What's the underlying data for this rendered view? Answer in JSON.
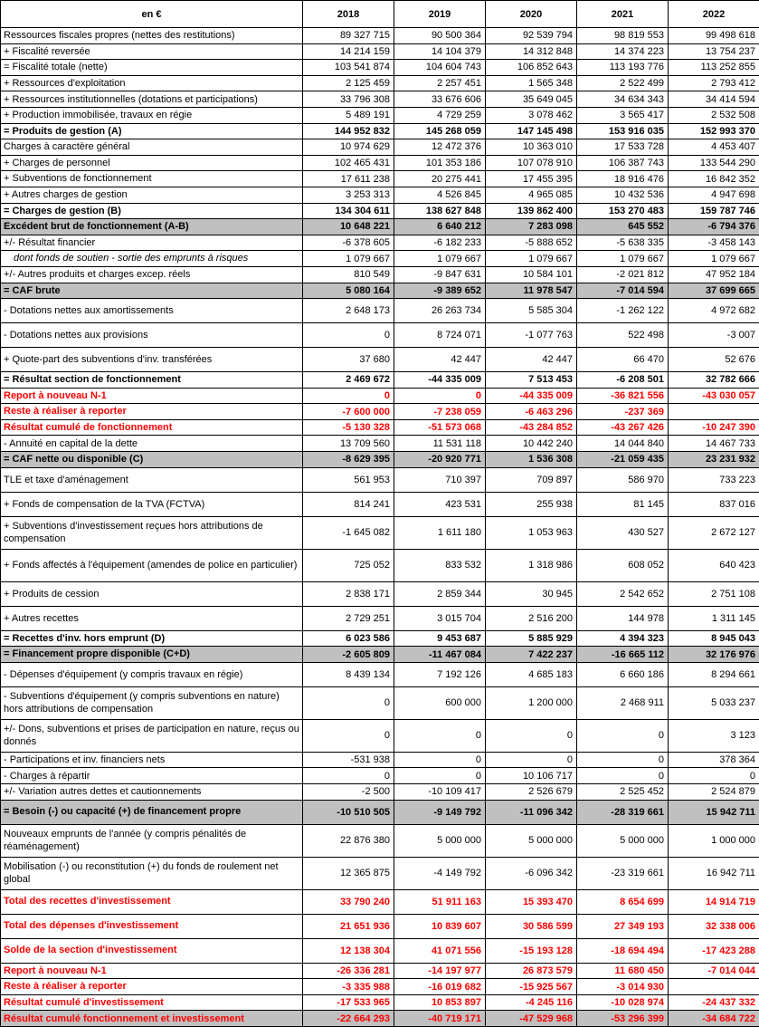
{
  "table": {
    "unit_label": "en €",
    "years": [
      "2018",
      "2019",
      "2020",
      "2021",
      "2022"
    ],
    "colors": {
      "band_bg": "#C0C0C0",
      "highlight_red": "#FF0000",
      "border": "#000000"
    },
    "rows": [
      {
        "label": "Ressources fiscales propres (nettes des restitutions)",
        "values": [
          "89 327 715",
          "90 500 364",
          "92 539 794",
          "98 819 553",
          "99 498 618"
        ],
        "kind": "normal",
        "h": "s"
      },
      {
        "label": "+ Fiscalité reversée",
        "values": [
          "14 214 159",
          "14 104 379",
          "14 312 848",
          "14 374 223",
          "13 754 237"
        ],
        "kind": "normal",
        "h": "s"
      },
      {
        "label": "= Fiscalité totale (nette)",
        "values": [
          "103 541 874",
          "104 604 743",
          "106 852 643",
          "113 193 776",
          "113 252 855"
        ],
        "kind": "normal",
        "h": "s"
      },
      {
        "label": "+ Ressources d'exploitation",
        "values": [
          "2 125 459",
          "2 257 451",
          "1 565 348",
          "2 522 499",
          "2 793 412"
        ],
        "kind": "normal",
        "h": "s"
      },
      {
        "label": "+ Ressources institutionnelles (dotations et participations)",
        "values": [
          "33 796 308",
          "33 676 606",
          "35 649 045",
          "34 634 343",
          "34 414 594"
        ],
        "kind": "normal",
        "h": "s"
      },
      {
        "label": "+ Production immobilisée, travaux en régie",
        "values": [
          "5 489 191",
          "4 729 259",
          "3 078 462",
          "3 565 417",
          "2 532 508"
        ],
        "kind": "normal",
        "h": "s"
      },
      {
        "label": "= Produits de gestion (A)",
        "values": [
          "144 952 832",
          "145 268 059",
          "147 145 498",
          "153 916 035",
          "152 993 370"
        ],
        "kind": "total",
        "h": "s"
      },
      {
        "label": "Charges à caractère général",
        "values": [
          "10 974 629",
          "12 472 376",
          "10 363 010",
          "17 533 728",
          "4 453 407"
        ],
        "kind": "normal",
        "h": "s"
      },
      {
        "label": "+ Charges de personnel",
        "values": [
          "102 465 431",
          "101 353 186",
          "107 078 910",
          "106 387 743",
          "133 544 290"
        ],
        "kind": "normal",
        "h": "s"
      },
      {
        "label": "+ Subventions de fonctionnement",
        "values": [
          "17 611 238",
          "20 275 441",
          "17 455 395",
          "18 916 476",
          "16 842 352"
        ],
        "kind": "normal",
        "h": "s"
      },
      {
        "label": "+ Autres charges de gestion",
        "values": [
          "3 253 313",
          "4 526 845",
          "4 965 085",
          "10 432 536",
          "4 947 698"
        ],
        "kind": "normal",
        "h": "s"
      },
      {
        "label": "= Charges de gestion (B)",
        "values": [
          "134 304 611",
          "138 627 848",
          "139 862 400",
          "153 270 483",
          "159 787 746"
        ],
        "kind": "total",
        "h": "s"
      },
      {
        "label": "Excédent brut de fonctionnement (A-B)",
        "values": [
          "10 648 221",
          "6 640 212",
          "7 283 098",
          "645 552",
          "-6 794 376"
        ],
        "kind": "band",
        "h": "s"
      },
      {
        "label": "+/- Résultat financier",
        "values": [
          "-6 378 605",
          "-6 182 233",
          "-5 888 652",
          "-5 638 335",
          "-3 458 143"
        ],
        "kind": "normal",
        "h": "s"
      },
      {
        "label": "dont fonds de soutien - sortie des emprunts à risques",
        "values": [
          "1 079 667",
          "1 079 667",
          "1 079 667",
          "1 079 667",
          "1 079 667"
        ],
        "kind": "detail-italic",
        "h": "s"
      },
      {
        "label": "+/- Autres produits et charges excep. réels",
        "values": [
          "810 549",
          "-9 847 631",
          "10 584 101",
          "-2 021 812",
          "47 952 184"
        ],
        "kind": "normal",
        "h": "s"
      },
      {
        "label": "= CAF brute",
        "values": [
          "5 080 164",
          "-9 389 652",
          "11 978 547",
          "-7 014 594",
          "37 699 665"
        ],
        "kind": "band",
        "h": "s"
      },
      {
        "label": "- Dotations nettes aux amortissements",
        "values": [
          "2 648 173",
          "26 263 734",
          "5 585 304",
          "-1 262 122",
          "4 972 682"
        ],
        "kind": "normal",
        "h": "m"
      },
      {
        "label": "- Dotations nettes aux provisions",
        "values": [
          "0",
          "8 724 071",
          "-1 077 763",
          "522 498",
          "-3 007"
        ],
        "kind": "normal",
        "h": "m"
      },
      {
        "label": "+ Quote-part des subventions d'inv. transférées",
        "values": [
          "37 680",
          "42 447",
          "42 447",
          "66 470",
          "52 676"
        ],
        "kind": "normal",
        "h": "m"
      },
      {
        "label": "= Résultat section de fonctionnement",
        "values": [
          "2 469 672",
          "-44 335 009",
          "7 513 453",
          "-6 208 501",
          "32 782 666"
        ],
        "kind": "total",
        "h": "s"
      },
      {
        "label": "Report à nouveau N-1",
        "values": [
          "0",
          "0",
          "-44 335 009",
          "-36 821 556",
          "-43 030 057"
        ],
        "kind": "red",
        "h": "s"
      },
      {
        "label": "Reste à réaliser à reporter",
        "values": [
          "-7 600 000",
          "-7 238 059",
          "-6 463 296",
          "-237 369",
          ""
        ],
        "kind": "red",
        "h": "s"
      },
      {
        "label": "Résultat cumulé de fonctionnement",
        "values": [
          "-5 130 328",
          "-51 573 068",
          "-43 284 852",
          "-43 267 426",
          "-10 247 390"
        ],
        "kind": "red",
        "h": "s"
      },
      {
        "label": "- Annuité en capital de la dette",
        "values": [
          "13 709 560",
          "11 531 118",
          "10 442 240",
          "14 044 840",
          "14 467 733"
        ],
        "kind": "normal",
        "h": "s"
      },
      {
        "label": "= CAF nette ou disponible (C)",
        "values": [
          "-8 629 395",
          "-20 920 771",
          "1 536 308",
          "-21 059 435",
          "23 231 932"
        ],
        "kind": "band",
        "h": "s"
      },
      {
        "label": "TLE et taxe d'aménagement",
        "values": [
          "561 953",
          "710 397",
          "709 897",
          "586 970",
          "733 223"
        ],
        "kind": "normal",
        "h": "m"
      },
      {
        "label": "+ Fonds de compensation de la TVA (FCTVA)",
        "values": [
          "814 241",
          "423 531",
          "255 938",
          "81 145",
          "837 016"
        ],
        "kind": "normal",
        "h": "m"
      },
      {
        "label": "+ Subventions d'investissement reçues hors attributions de compensation",
        "values": [
          "-1 645 082",
          "1 611 180",
          "1 053 963",
          "430 527",
          "2 672 127"
        ],
        "kind": "normal",
        "h": "l"
      },
      {
        "label": "+ Fonds affectés à l'équipement (amendes de police en particulier)",
        "values": [
          "725 052",
          "833 532",
          "1 318 986",
          "608 052",
          "640 423"
        ],
        "kind": "normal",
        "h": "l"
      },
      {
        "label": "+ Produits de cession",
        "values": [
          "2 838 171",
          "2 859 344",
          "30 945",
          "2 542 652",
          "2 751 108"
        ],
        "kind": "normal",
        "h": "m"
      },
      {
        "label": "+ Autres recettes",
        "values": [
          "2 729 251",
          "3 015 704",
          "2 516 200",
          "144 978",
          "1 311 145"
        ],
        "kind": "normal",
        "h": "m"
      },
      {
        "label": "= Recettes d'inv. hors emprunt (D)",
        "values": [
          "6 023 586",
          "9 453 687",
          "5 885 929",
          "4 394 323",
          "8 945 043"
        ],
        "kind": "total",
        "h": "s"
      },
      {
        "label": "= Financement propre disponible (C+D)",
        "values": [
          "-2 605 809",
          "-11 467 084",
          "7 422 237",
          "-16 665 112",
          "32 176 976"
        ],
        "kind": "band",
        "h": "s"
      },
      {
        "label": "- Dépenses d'équipement (y compris travaux en régie)",
        "values": [
          "8 439 134",
          "7 192 126",
          "4 685 183",
          "6 660 186",
          "8 294 661"
        ],
        "kind": "normal",
        "h": "m"
      },
      {
        "label": "- Subventions d'équipement (y compris subventions en nature) hors attributions de compensation",
        "values": [
          "0",
          "600 000",
          "1 200 000",
          "2 468 911",
          "5 033 237"
        ],
        "kind": "normal",
        "h": "l"
      },
      {
        "label": "+/- Dons, subventions et prises de participation en nature, reçus ou donnés",
        "values": [
          "0",
          "0",
          "0",
          "0",
          "3 123"
        ],
        "kind": "normal",
        "h": "l"
      },
      {
        "label": "- Participations et inv. financiers nets",
        "values": [
          "-531 938",
          "0",
          "0",
          "0",
          "378 364"
        ],
        "kind": "normal",
        "h": "s"
      },
      {
        "label": "- Charges à répartir",
        "values": [
          "0",
          "0",
          "10 106 717",
          "0",
          "0"
        ],
        "kind": "normal",
        "h": "s"
      },
      {
        "label": "+/- Variation autres dettes et cautionnements",
        "values": [
          "-2 500",
          "-10 109 417",
          "2 526 679",
          "2 525 452",
          "2 524 879"
        ],
        "kind": "normal",
        "h": "s"
      },
      {
        "label": "= Besoin (-) ou capacité (+) de financement propre",
        "values": [
          "-10 510 505",
          "-9 149 792",
          "-11 096 342",
          "-28 319 661",
          "15 942 711"
        ],
        "kind": "band",
        "h": "m"
      },
      {
        "label": "Nouveaux emprunts de l'année (y compris pénalités de réaménagement)",
        "values": [
          "22 876 380",
          "5 000 000",
          "5 000 000",
          "5 000 000",
          "1 000 000"
        ],
        "kind": "normal",
        "h": "l"
      },
      {
        "label": "Mobilisation (-) ou reconstitution (+) du fonds de roulement net global",
        "values": [
          "12 365 875",
          "-4 149 792",
          "-6 096 342",
          "-23 319 661",
          "16 942 711"
        ],
        "kind": "normal",
        "h": "l"
      },
      {
        "label": "Total des recettes d'investissement",
        "values": [
          "33 790 240",
          "51 911 163",
          "15 393 470",
          "8 654 699",
          "14 914 719"
        ],
        "kind": "red",
        "h": "m"
      },
      {
        "label": "Total des dépenses d'investissement",
        "values": [
          "21 651 936",
          "10 839 607",
          "30 586 599",
          "27 349 193",
          "32 338 006"
        ],
        "kind": "red",
        "h": "m"
      },
      {
        "label": "Solde de la section d'investissement",
        "values": [
          "12 138 304",
          "41 071 556",
          "-15 193 128",
          "-18 694 494",
          "-17 423 288"
        ],
        "kind": "red",
        "h": "m"
      },
      {
        "label": "Report à nouveau N-1",
        "values": [
          "-26 336 281",
          "-14 197 977",
          "26 873 579",
          "11 680 450",
          "-7 014 044"
        ],
        "kind": "red",
        "h": "s"
      },
      {
        "label": "Reste à réaliser à reporter",
        "values": [
          "-3 335 988",
          "-16 019 682",
          "-15 925 567",
          "-3 014 930",
          ""
        ],
        "kind": "red",
        "h": "s"
      },
      {
        "label": "Résultat cumulé d'investissement",
        "values": [
          "-17 533 965",
          "10 853 897",
          "-4 245 116",
          "-10 028 974",
          "-24 437 332"
        ],
        "kind": "red",
        "h": "s"
      },
      {
        "label": "Résultat cumulé fonctionnement et investissement",
        "values": [
          "-22 664 293",
          "-40 719 171",
          "-47 529 968",
          "-53 296 399",
          "-34 684 722"
        ],
        "kind": "red-band",
        "h": "s"
      }
    ]
  }
}
